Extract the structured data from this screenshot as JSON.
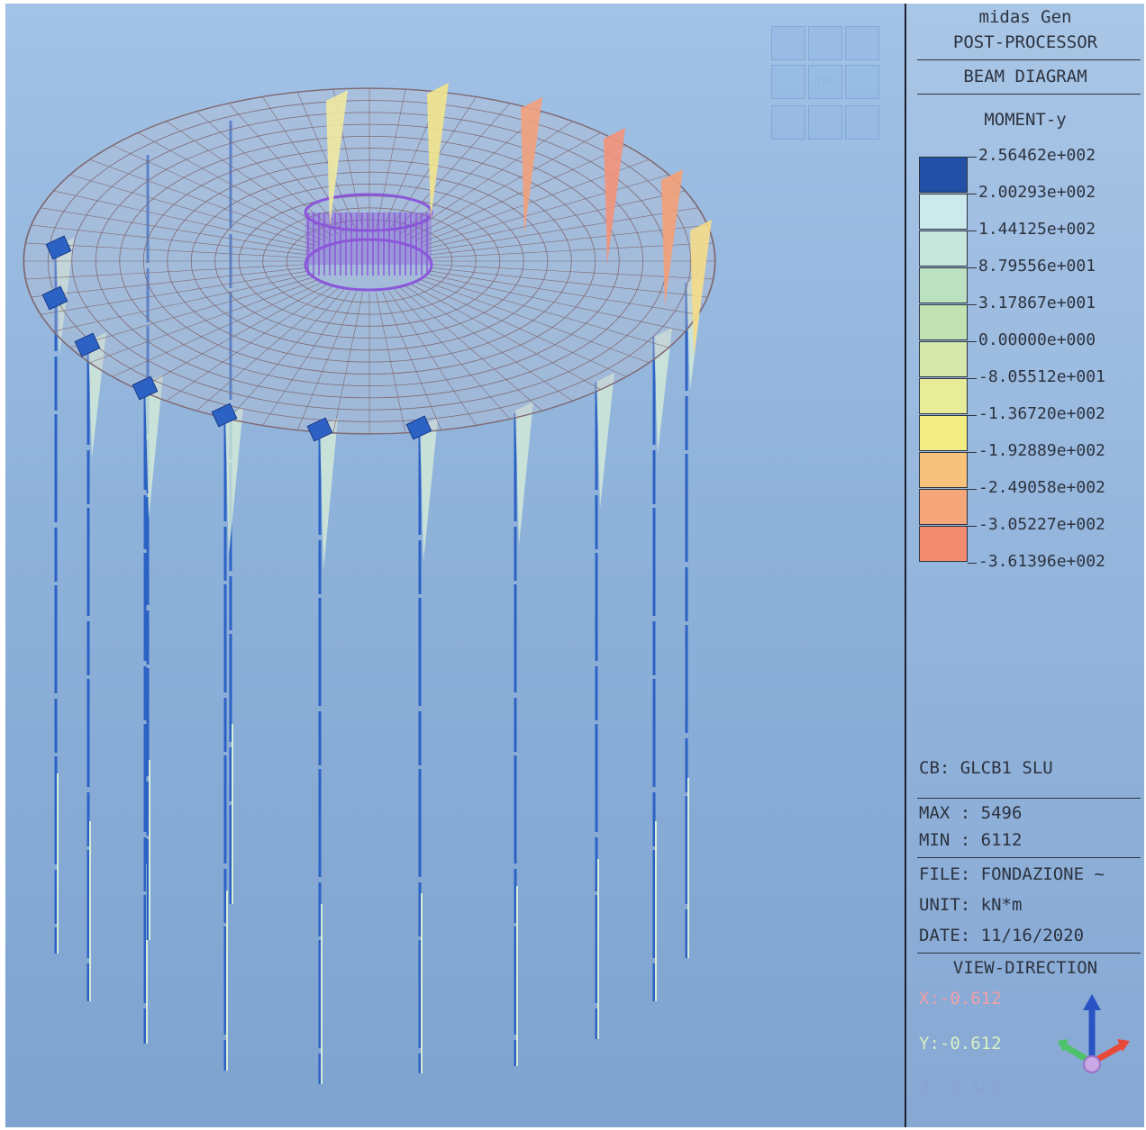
{
  "panel": {
    "app_name": "midas Gen",
    "mode": "POST-PROCESSOR",
    "diagram": "BEAM DIAGRAM",
    "component": "MOMENT-y"
  },
  "legend": {
    "labels": [
      "2.56462e+002",
      "2.00293e+002",
      "1.44125e+002",
      "8.79556e+001",
      "3.17867e+001",
      "0.00000e+000",
      "-8.05512e+001",
      "-1.36720e+002",
      "-1.92889e+002",
      "-2.49058e+002",
      "-3.05227e+002",
      "-3.61396e+002"
    ],
    "colors": [
      "#2150a6",
      "#cce9ec",
      "#c6e8dc",
      "#bce1c0",
      "#c2e2b4",
      "#d6e8ac",
      "#e6ec98",
      "#f3ee84",
      "#f6c27c",
      "#f5a67a",
      "#f18c6e"
    ]
  },
  "info": {
    "cb": "CB: GLCB1 SLU",
    "max": "MAX : 5496",
    "min": "MIN : 6112",
    "file": "FILE: FONDAZIONE ~",
    "unit": "UNIT: kN*m",
    "date": "DATE: 11/16/2020"
  },
  "view_direction": {
    "title": "VIEW-DIRECTION",
    "x": "X:-0.612",
    "y": "Y:-0.612",
    "z": "Z: 0.500"
  },
  "view_cube": {
    "top_label": "TOP"
  },
  "colors": {
    "beam_blue": "#2c62c4",
    "mesh_line": "#7f6a73",
    "core_ring": "#8a57d8",
    "diagram_pale": "#d6ecd8"
  },
  "icons": [
    "view-cube-icon",
    "axis-triad-icon"
  ]
}
